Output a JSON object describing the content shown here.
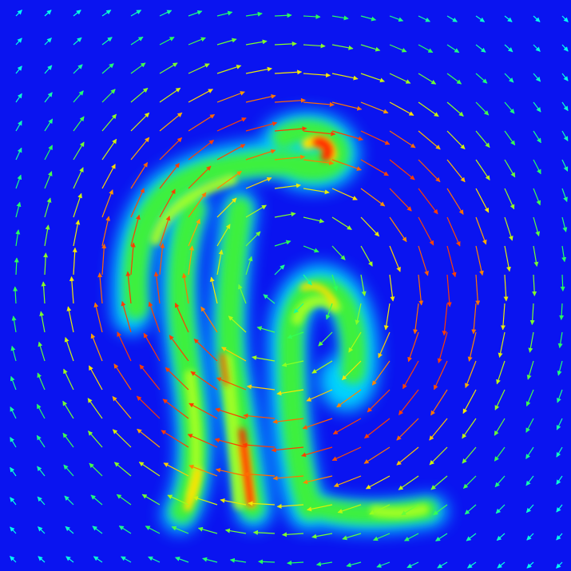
{
  "scene": {
    "kind": "vector-field-over-scalar-density",
    "colormap": "jet",
    "colors": {
      "background": "#0a14f0",
      "low": "#00ffff",
      "mid": "#33ff33",
      "high": "#ffee00",
      "peak": "#ff2200"
    },
    "vortex_direction": "clockwise",
    "shapes": [
      "left-figure-head-and-arm",
      "left-figure-legs",
      "right-hook-figure"
    ]
  }
}
